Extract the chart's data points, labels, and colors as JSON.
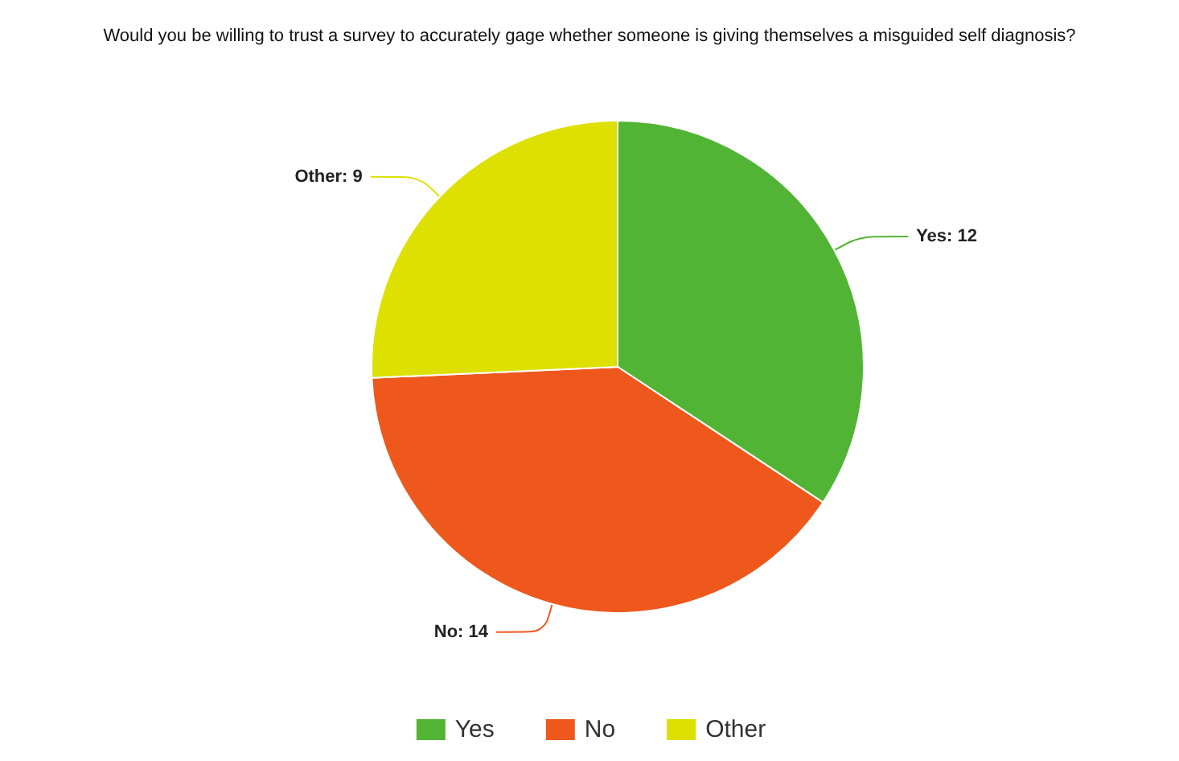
{
  "chart_data": {
    "type": "pie",
    "title": "Would you be willing to trust a survey to accurately gage whether someone is giving themselves a misguided self diagnosis?",
    "categories": [
      "Yes",
      "No",
      "Other"
    ],
    "values": [
      12,
      14,
      9
    ],
    "value_labels": [
      "Yes: 12",
      "No: 14",
      "Other: 9"
    ],
    "colors": [
      "#52b435",
      "#ee581d",
      "#dde000"
    ],
    "legend": "bottom"
  }
}
